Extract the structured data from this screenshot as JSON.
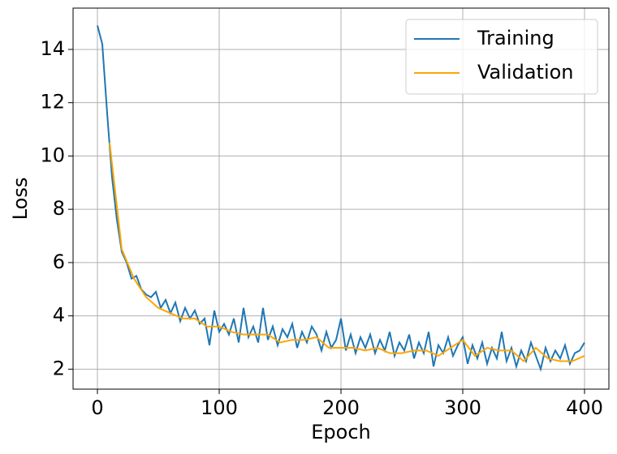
{
  "chart_data": {
    "type": "line",
    "xlabel": "Epoch",
    "ylabel": "Loss",
    "xlim": [
      -20,
      420
    ],
    "ylim": [
      1.25,
      15.55
    ],
    "xticks": [
      0,
      100,
      200,
      300,
      400
    ],
    "yticks": [
      2,
      4,
      6,
      8,
      10,
      12,
      14
    ],
    "grid": true,
    "legend": "upper right",
    "series": [
      {
        "name": "Training",
        "color": "#1f77b4",
        "x": [
          0,
          4,
          8,
          12,
          16,
          20,
          24,
          28,
          32,
          36,
          40,
          44,
          48,
          52,
          56,
          60,
          64,
          68,
          72,
          76,
          80,
          84,
          88,
          92,
          96,
          100,
          104,
          108,
          112,
          116,
          120,
          124,
          128,
          132,
          136,
          140,
          144,
          148,
          152,
          156,
          160,
          164,
          168,
          172,
          176,
          180,
          184,
          188,
          192,
          196,
          200,
          204,
          208,
          212,
          216,
          220,
          224,
          228,
          232,
          236,
          240,
          244,
          248,
          252,
          256,
          260,
          264,
          268,
          272,
          276,
          280,
          284,
          288,
          292,
          296,
          300,
          304,
          308,
          312,
          316,
          320,
          324,
          328,
          332,
          336,
          340,
          344,
          348,
          352,
          356,
          360,
          364,
          368,
          372,
          376,
          380,
          384,
          388,
          392,
          396,
          400
        ],
        "values": [
          14.9,
          14.2,
          11.6,
          9.2,
          7.6,
          6.4,
          6.0,
          5.4,
          5.5,
          5.0,
          4.8,
          4.7,
          4.9,
          4.3,
          4.6,
          4.1,
          4.5,
          3.8,
          4.3,
          3.9,
          4.2,
          3.7,
          3.9,
          2.9,
          4.2,
          3.4,
          3.7,
          3.3,
          3.9,
          3.0,
          4.3,
          3.2,
          3.6,
          3.0,
          4.3,
          3.1,
          3.6,
          2.9,
          3.5,
          3.2,
          3.7,
          2.8,
          3.4,
          3.0,
          3.6,
          3.3,
          2.7,
          3.4,
          2.8,
          3.1,
          3.9,
          2.7,
          3.3,
          2.6,
          3.2,
          2.8,
          3.3,
          2.6,
          3.1,
          2.7,
          3.4,
          2.5,
          3.0,
          2.7,
          3.3,
          2.4,
          3.0,
          2.6,
          3.4,
          2.1,
          2.9,
          2.6,
          3.2,
          2.5,
          2.9,
          3.2,
          2.2,
          2.9,
          2.4,
          3.0,
          2.2,
          2.8,
          2.4,
          3.4,
          2.3,
          2.8,
          2.1,
          2.7,
          2.3,
          3.0,
          2.5,
          2.0,
          2.8,
          2.3,
          2.7,
          2.4,
          2.9,
          2.2,
          2.6,
          2.7,
          3.0
        ]
      },
      {
        "name": "Validation",
        "color": "#ffa500",
        "x": [
          10,
          20,
          30,
          40,
          50,
          60,
          70,
          80,
          90,
          100,
          110,
          120,
          130,
          140,
          150,
          160,
          170,
          180,
          190,
          200,
          210,
          220,
          230,
          240,
          250,
          260,
          270,
          280,
          290,
          300,
          310,
          320,
          330,
          340,
          350,
          360,
          370,
          380,
          390,
          400
        ],
        "values": [
          10.5,
          6.5,
          5.4,
          4.7,
          4.3,
          4.1,
          3.9,
          3.9,
          3.6,
          3.6,
          3.4,
          3.3,
          3.3,
          3.3,
          3.0,
          3.1,
          3.1,
          3.2,
          2.8,
          2.8,
          2.8,
          2.7,
          2.8,
          2.6,
          2.6,
          2.7,
          2.7,
          2.5,
          2.8,
          3.1,
          2.5,
          2.8,
          2.7,
          2.7,
          2.3,
          2.8,
          2.4,
          2.3,
          2.3,
          2.5
        ]
      }
    ]
  }
}
